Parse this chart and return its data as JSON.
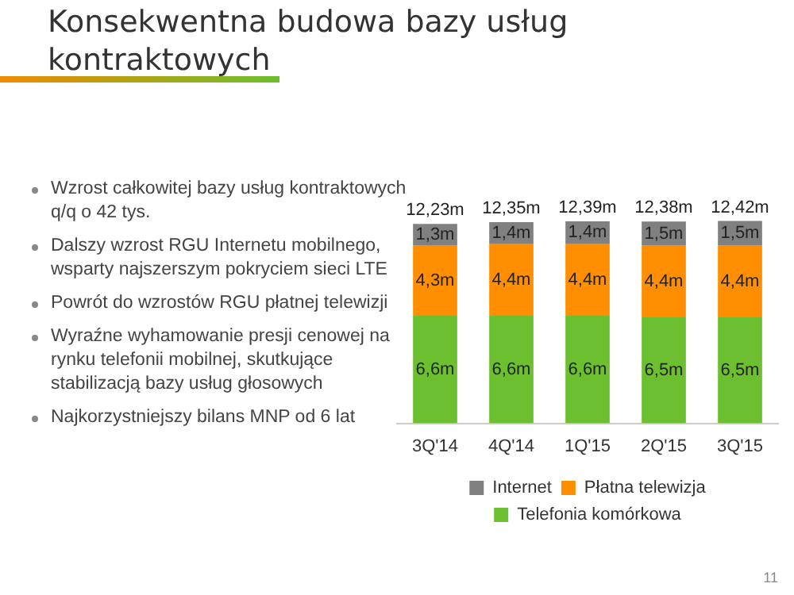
{
  "chart_data": {
    "type": "bar",
    "title": "Konsekwentna budowa bazy usług kontraktowych",
    "categories": [
      "3Q'14",
      "4Q'14",
      "1Q'15",
      "2Q'15",
      "3Q'15"
    ],
    "stacked": true,
    "legend": "bottom",
    "grid": false,
    "tick_labels": "x",
    "series": [
      {
        "name": "Telefonia komórkowa",
        "color": "#6cbf2e",
        "values": [
          6.6,
          6.6,
          6.6,
          6.5,
          6.5
        ],
        "value_labels": [
          "6,6m",
          "6,6m",
          "6,6m",
          "6,5m",
          "6,5m"
        ]
      },
      {
        "name": "Płatna telewizja",
        "color": "#ff8f00",
        "values": [
          4.3,
          4.4,
          4.4,
          4.4,
          4.4
        ],
        "value_labels": [
          "4,3m",
          "4,4m",
          "4,4m",
          "4,4m",
          "4,4m"
        ]
      },
      {
        "name": "Internet",
        "color": "#808080",
        "values": [
          1.33,
          1.35,
          1.39,
          1.48,
          1.52
        ],
        "value_labels": [
          "1,3m",
          "1,4m",
          "1,4m",
          "1,5m",
          "1,5m"
        ]
      }
    ],
    "totals": [
      "12,23m",
      "12,35m",
      "12,39m",
      "12,38m",
      "12,42m"
    ],
    "annotations": [
      "Wzrost całkowitej bazy usług kontraktowych q/q o 42 tys.",
      "Dalszy wzrost RGU Internetu mobilnego, wsparty najszerszym pokryciem sieci LTE",
      "Powrót do wzrostów RGU płatnej telewizji",
      "Wyraźne wyhamowanie presji cenowej na rynku telefonii mobilnej, skutkujące stabilizacją bazy usług głosowych",
      "Najkorzystniejszy bilans MNP od 6 lat",
      "11"
    ]
  }
}
